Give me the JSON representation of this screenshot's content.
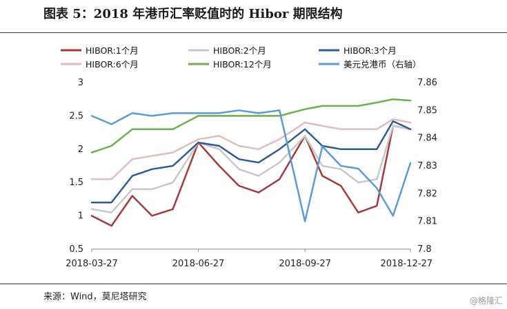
{
  "header": {
    "title": "图表 5：2018 年港币汇率贬值时的 Hibor 期限结构"
  },
  "footer": {
    "source": "来源：Wind，莫尼塔研究",
    "watermark": "@格隆汇"
  },
  "colors": {
    "hibor_1m": "#a33a3a",
    "hibor_2m": "#c8c8c8",
    "hibor_3m": "#2f5a94",
    "hibor_6m": "#e2bcbc",
    "hibor_12m": "#6ab04c",
    "usdhkd": "#5b9bd5"
  },
  "chart_data": {
    "type": "line",
    "x": [
      "2018-03-27",
      "2018-04-13",
      "2018-05-01",
      "2018-05-18",
      "2018-06-05",
      "2018-06-27",
      "2018-07-15",
      "2018-08-01",
      "2018-08-18",
      "2018-09-05",
      "2018-09-27",
      "2018-10-12",
      "2018-10-28",
      "2018-11-12",
      "2018-11-28",
      "2018-12-12",
      "2018-12-27"
    ],
    "x_ticks": [
      "2018-03-27",
      "2018-06-27",
      "2018-09-27",
      "2018-12-27"
    ],
    "ylim": [
      0.5,
      3
    ],
    "y_ticks": [
      "0.5",
      "1",
      "1.5",
      "2",
      "2.5",
      "3"
    ],
    "y2lim": [
      7.8,
      7.86
    ],
    "y2_ticks": [
      "7.8",
      "7.81",
      "7.82",
      "7.83",
      "7.84",
      "7.85",
      "7.86"
    ],
    "legend_position": "top",
    "grid": false,
    "series": [
      {
        "name": "HIBOR:1个月",
        "axis": "left",
        "color_key": "hibor_1m",
        "values": [
          1.0,
          0.85,
          1.3,
          1.0,
          1.1,
          2.1,
          1.75,
          1.45,
          1.35,
          1.55,
          2.2,
          1.6,
          1.45,
          1.05,
          1.15,
          2.35,
          2.3
        ]
      },
      {
        "name": "HIBOR:2个月",
        "axis": "left",
        "color_key": "hibor_2m",
        "values": [
          1.1,
          1.05,
          1.4,
          1.4,
          1.5,
          2.1,
          2.0,
          1.7,
          1.6,
          1.8,
          2.2,
          1.75,
          1.7,
          1.5,
          1.55,
          2.35,
          2.3
        ]
      },
      {
        "name": "HIBOR:3个月",
        "axis": "left",
        "color_key": "hibor_3m",
        "values": [
          1.2,
          1.2,
          1.6,
          1.7,
          1.75,
          2.1,
          2.05,
          1.85,
          1.8,
          2.0,
          2.3,
          2.05,
          2.0,
          2.0,
          2.0,
          2.42,
          2.3
        ]
      },
      {
        "name": "HIBOR:6个月",
        "axis": "left",
        "color_key": "hibor_6m",
        "values": [
          1.55,
          1.55,
          1.85,
          1.9,
          1.95,
          2.15,
          2.2,
          2.05,
          2.0,
          2.15,
          2.4,
          2.35,
          2.3,
          2.3,
          2.3,
          2.45,
          2.4
        ]
      },
      {
        "name": "HIBOR:12个月",
        "axis": "left",
        "color_key": "hibor_12m",
        "values": [
          1.95,
          2.05,
          2.3,
          2.3,
          2.3,
          2.5,
          2.5,
          2.5,
          2.5,
          2.5,
          2.6,
          2.65,
          2.65,
          2.65,
          2.7,
          2.75,
          2.73
        ]
      },
      {
        "name": "美元兑港币（右轴）",
        "axis": "right",
        "color_key": "usdhkd",
        "values": [
          7.848,
          7.845,
          7.849,
          7.848,
          7.849,
          7.849,
          7.849,
          7.85,
          7.849,
          7.85,
          7.81,
          7.837,
          7.83,
          7.829,
          7.822,
          7.812,
          7.831
        ]
      }
    ]
  }
}
